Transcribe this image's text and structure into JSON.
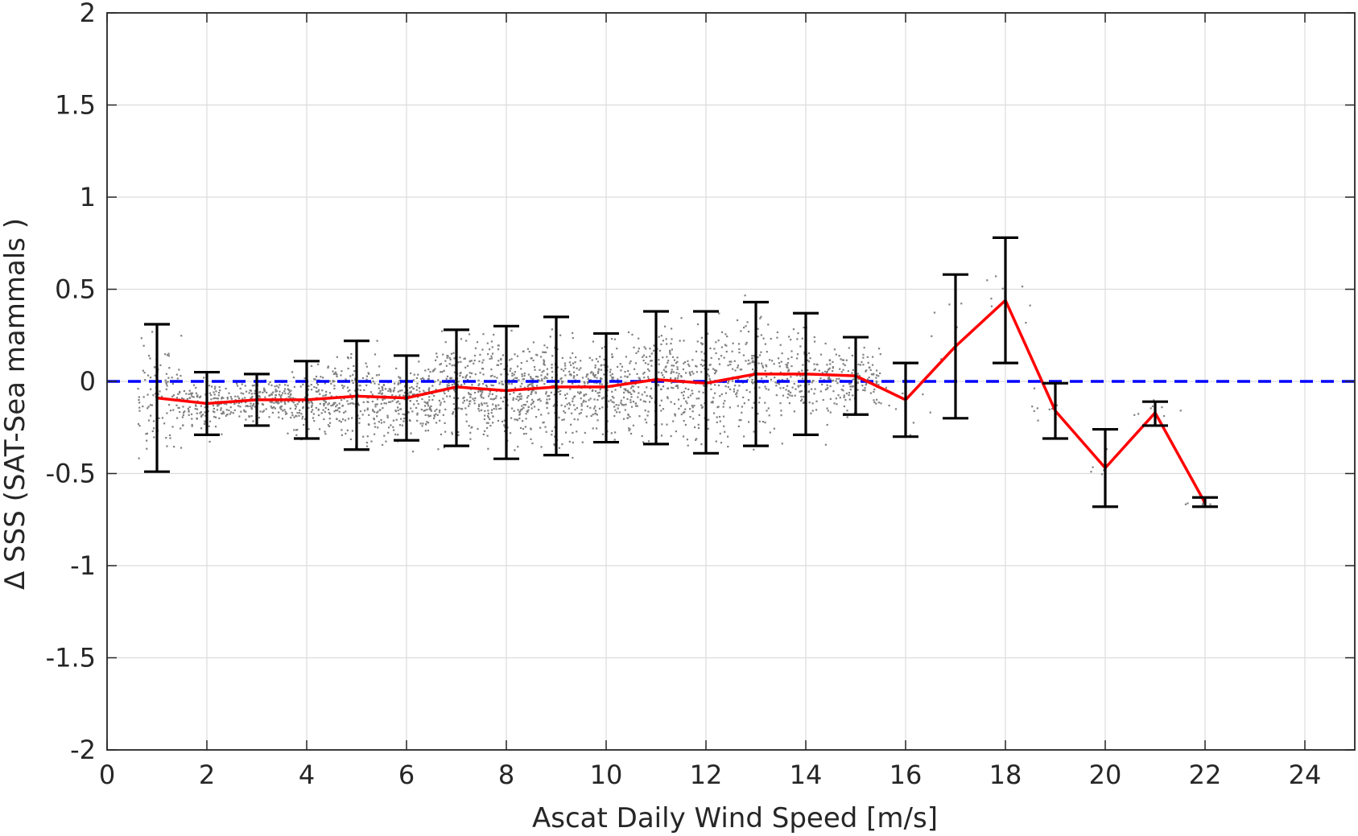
{
  "chart_data": {
    "type": "scatter",
    "xlabel": "Ascat Daily Wind Speed [m/s]",
    "ylabel": "Δ SSS (SAT-Sea mammals )",
    "xlim": [
      0,
      25
    ],
    "ylim": [
      -2,
      2
    ],
    "xticks": [
      0,
      2,
      4,
      6,
      8,
      10,
      12,
      14,
      16,
      18,
      20,
      22,
      24
    ],
    "yticks": [
      -2,
      -1.5,
      -1,
      -0.5,
      0,
      0.5,
      1,
      1.5,
      2
    ],
    "xtick_labels": [
      "0",
      "2",
      "4",
      "6",
      "8",
      "10",
      "12",
      "14",
      "16",
      "18",
      "20",
      "22",
      "24"
    ],
    "ytick_labels": [
      "-2",
      "-1.5",
      "-1",
      "-0.5",
      "0",
      "0.5",
      "1",
      "1.5",
      "2"
    ],
    "grid": true,
    "legend": "none",
    "series": [
      {
        "kind": "mean_line_with_errorbars",
        "color": "#ff0000",
        "errorbar_color": "#000000",
        "x": [
          1,
          2,
          3,
          4,
          5,
          6,
          7,
          8,
          9,
          10,
          11,
          12,
          13,
          14,
          15,
          16,
          17,
          18,
          19,
          20,
          21,
          22
        ],
        "mean": [
          -0.09,
          -0.12,
          -0.1,
          -0.1,
          -0.08,
          -0.09,
          -0.03,
          -0.05,
          -0.03,
          -0.03,
          0.01,
          -0.01,
          0.04,
          0.04,
          0.03,
          -0.1,
          0.19,
          0.44,
          -0.16,
          -0.47,
          -0.17,
          -0.66
        ],
        "lower": [
          -0.49,
          -0.29,
          -0.24,
          -0.31,
          -0.37,
          -0.32,
          -0.35,
          -0.42,
          -0.4,
          -0.33,
          -0.34,
          -0.39,
          -0.35,
          -0.29,
          -0.18,
          -0.3,
          -0.2,
          0.1,
          -0.31,
          -0.68,
          -0.24,
          -0.68
        ],
        "upper": [
          0.31,
          0.05,
          0.04,
          0.11,
          0.22,
          0.14,
          0.28,
          0.3,
          0.35,
          0.26,
          0.38,
          0.38,
          0.43,
          0.37,
          0.24,
          0.1,
          0.58,
          0.78,
          -0.01,
          -0.26,
          -0.11,
          -0.63
        ]
      },
      {
        "kind": "reference_line",
        "y": 0,
        "color": "#0000ff",
        "style": "dashed"
      },
      {
        "kind": "scatter_cloud",
        "color": "#808080",
        "note_points_generated_from_bins": true
      }
    ]
  }
}
